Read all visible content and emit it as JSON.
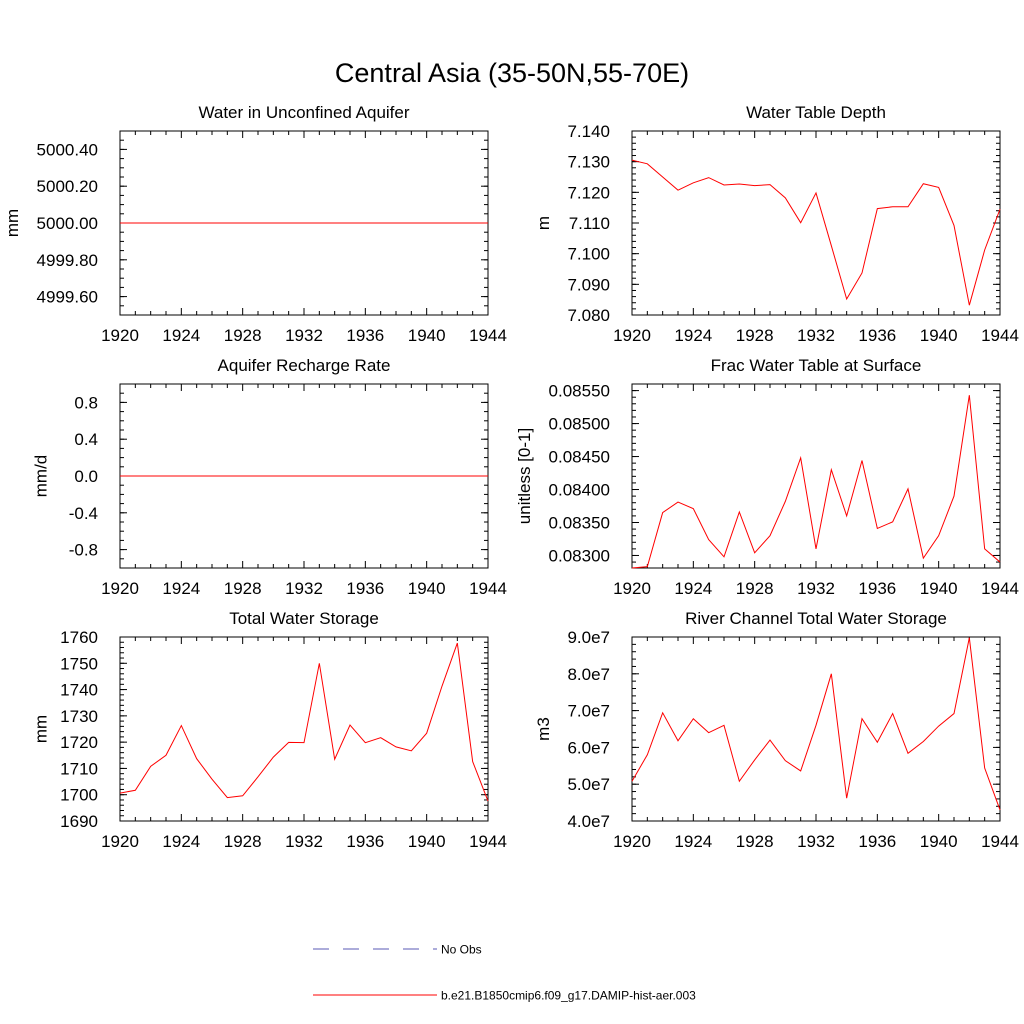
{
  "title": "Central Asia (35-50N,55-70E)",
  "colors": {
    "model": "#ff0000",
    "obs": "#5a5ab4",
    "axis": "#000000"
  },
  "legend": {
    "obs_label": "No Obs",
    "model_label": "b.e21.B1850cmip6.f09_g17.DAMIP-hist-aer.003"
  },
  "chart_data": [
    {
      "type": "line",
      "title": "Water in Unconfined Aquifer",
      "ylabel": "mm",
      "xlim": [
        1920,
        1944
      ],
      "ylim": [
        4999.5,
        5000.5
      ],
      "xticks": [
        1920,
        1924,
        1928,
        1932,
        1936,
        1940,
        1944
      ],
      "xtick_labels": [
        "1920",
        "1924",
        "1928",
        "1932",
        "1936",
        "1940",
        "1944"
      ],
      "yticks": [
        4999.6,
        4999.8,
        5000.0,
        5000.2,
        5000.4
      ],
      "ytick_labels": [
        "4999.60",
        "4999.80",
        "5000.00",
        "5000.20",
        "5000.40"
      ],
      "ymin_step": 0.05,
      "x": [
        1920,
        1921,
        1922,
        1923,
        1924,
        1925,
        1926,
        1927,
        1928,
        1929,
        1930,
        1931,
        1932,
        1933,
        1934,
        1935,
        1936,
        1937,
        1938,
        1939,
        1940,
        1941,
        1942,
        1943,
        1944
      ],
      "y": [
        5000,
        5000,
        5000,
        5000,
        5000,
        5000,
        5000,
        5000,
        5000,
        5000,
        5000,
        5000,
        5000,
        5000,
        5000,
        5000,
        5000,
        5000,
        5000,
        5000,
        5000,
        5000,
        5000,
        5000,
        5000
      ]
    },
    {
      "type": "line",
      "title": "Water Table Depth",
      "ylabel": "m",
      "xlim": [
        1920,
        1944
      ],
      "ylim": [
        7.08,
        7.14
      ],
      "xticks": [
        1920,
        1924,
        1928,
        1932,
        1936,
        1940,
        1944
      ],
      "xtick_labels": [
        "1920",
        "1924",
        "1928",
        "1932",
        "1936",
        "1940",
        "1944"
      ],
      "yticks": [
        7.08,
        7.09,
        7.1,
        7.11,
        7.12,
        7.13,
        7.14
      ],
      "ytick_labels": [
        "7.080",
        "7.090",
        "7.100",
        "7.110",
        "7.120",
        "7.130",
        "7.140"
      ],
      "ymin_step": 0.002,
      "x": [
        1920,
        1921,
        1922,
        1923,
        1924,
        1925,
        1926,
        1927,
        1928,
        1929,
        1930,
        1931,
        1932,
        1933,
        1934,
        1935,
        1936,
        1937,
        1938,
        1939,
        1940,
        1941,
        1942,
        1943,
        1944
      ],
      "y": [
        7.1305,
        7.1293,
        7.125,
        7.1207,
        7.1231,
        7.1248,
        7.1224,
        7.1227,
        7.1222,
        7.1225,
        7.1182,
        7.1101,
        7.1198,
        7.1026,
        7.0852,
        7.0937,
        7.1147,
        7.1153,
        7.1153,
        7.1228,
        7.1216,
        7.1092,
        7.0832,
        7.1012,
        7.1145
      ]
    },
    {
      "type": "line",
      "title": "Aquifer Recharge Rate",
      "ylabel": "mm/d",
      "xlim": [
        1920,
        1944
      ],
      "ylim": [
        -1.0,
        1.0
      ],
      "xticks": [
        1920,
        1924,
        1928,
        1932,
        1936,
        1940,
        1944
      ],
      "xtick_labels": [
        "1920",
        "1924",
        "1928",
        "1932",
        "1936",
        "1940",
        "1944"
      ],
      "yticks": [
        -0.8,
        -0.4,
        0.0,
        0.4,
        0.8
      ],
      "ytick_labels": [
        "-0.8",
        "-0.4",
        "0.0",
        "0.4",
        "0.8"
      ],
      "ymin_step": 0.1,
      "x": [
        1920,
        1921,
        1922,
        1923,
        1924,
        1925,
        1926,
        1927,
        1928,
        1929,
        1930,
        1931,
        1932,
        1933,
        1934,
        1935,
        1936,
        1937,
        1938,
        1939,
        1940,
        1941,
        1942,
        1943,
        1944
      ],
      "y": [
        0,
        0,
        0,
        0,
        0,
        0,
        0,
        0,
        0,
        0,
        0,
        0,
        0,
        0,
        0,
        0,
        0,
        0,
        0,
        0,
        0,
        0,
        0,
        0,
        0
      ]
    },
    {
      "type": "line",
      "title": "Frac Water Table at Surface",
      "ylabel": "unitless [0-1]",
      "xlim": [
        1920,
        1944
      ],
      "ylim": [
        0.08281,
        0.0856
      ],
      "xticks": [
        1920,
        1924,
        1928,
        1932,
        1936,
        1940,
        1944
      ],
      "xtick_labels": [
        "1920",
        "1924",
        "1928",
        "1932",
        "1936",
        "1940",
        "1944"
      ],
      "yticks": [
        0.083,
        0.0835,
        0.084,
        0.0845,
        0.085,
        0.0855
      ],
      "ytick_labels": [
        "0.08300",
        "0.08350",
        "0.08400",
        "0.08450",
        "0.08500",
        "0.08550"
      ],
      "ymin_step": 0.0001,
      "x": [
        1920,
        1921,
        1922,
        1923,
        1924,
        1925,
        1926,
        1927,
        1928,
        1929,
        1930,
        1931,
        1932,
        1933,
        1934,
        1935,
        1936,
        1937,
        1938,
        1939,
        1940,
        1941,
        1942,
        1943,
        1944
      ],
      "y": [
        0.08281,
        0.08283,
        0.08365,
        0.08381,
        0.08371,
        0.08324,
        0.08298,
        0.08366,
        0.08304,
        0.0833,
        0.08382,
        0.08448,
        0.0831,
        0.0843,
        0.0836,
        0.08444,
        0.08341,
        0.08351,
        0.08401,
        0.08296,
        0.0833,
        0.0839,
        0.08543,
        0.0831,
        0.0829
      ]
    },
    {
      "type": "line",
      "title": "Total Water Storage",
      "ylabel": "mm",
      "xlim": [
        1920,
        1944
      ],
      "ylim": [
        1690,
        1760
      ],
      "xticks": [
        1920,
        1924,
        1928,
        1932,
        1936,
        1940,
        1944
      ],
      "xtick_labels": [
        "1920",
        "1924",
        "1928",
        "1932",
        "1936",
        "1940",
        "1944"
      ],
      "yticks": [
        1690,
        1700,
        1710,
        1720,
        1730,
        1740,
        1750,
        1760
      ],
      "ytick_labels": [
        "1690",
        "1700",
        "1710",
        "1720",
        "1730",
        "1740",
        "1750",
        "1760"
      ],
      "ymin_step": 2,
      "x": [
        1920,
        1921,
        1922,
        1923,
        1924,
        1925,
        1926,
        1927,
        1928,
        1929,
        1930,
        1931,
        1932,
        1933,
        1934,
        1935,
        1936,
        1937,
        1938,
        1939,
        1940,
        1941,
        1942,
        1943,
        1944
      ],
      "y": [
        1700.6,
        1701.7,
        1710.8,
        1715,
        1726.3,
        1713.7,
        1705.9,
        1698.9,
        1699.6,
        1706.8,
        1714.3,
        1719.9,
        1719.8,
        1750,
        1713.5,
        1726.5,
        1719.8,
        1721.7,
        1718.2,
        1716.7,
        1723.4,
        1741.3,
        1757.7,
        1712.6,
        1697.6
      ]
    },
    {
      "type": "line",
      "title": "River Channel Total Water Storage",
      "ylabel": "m3",
      "xlim": [
        1920,
        1944
      ],
      "ylim": [
        40000000,
        90000000
      ],
      "xticks": [
        1920,
        1924,
        1928,
        1932,
        1936,
        1940,
        1944
      ],
      "xtick_labels": [
        "1920",
        "1924",
        "1928",
        "1932",
        "1936",
        "1940",
        "1944"
      ],
      "yticks": [
        40000000,
        50000000,
        60000000,
        70000000,
        80000000,
        90000000
      ],
      "ytick_labels": [
        "4.0e7",
        "5.0e7",
        "6.0e7",
        "7.0e7",
        "8.0e7",
        "9.0e7"
      ],
      "ymin_step": 2000000,
      "x": [
        1920,
        1921,
        1922,
        1923,
        1924,
        1925,
        1926,
        1927,
        1928,
        1929,
        1930,
        1931,
        1932,
        1933,
        1934,
        1935,
        1936,
        1937,
        1938,
        1939,
        1940,
        1941,
        1942,
        1943,
        1944
      ],
      "y": [
        50800000,
        58000000,
        69400000,
        61800000,
        67800000,
        64000000,
        66000000,
        50800000,
        56600000,
        62000000,
        56400000,
        53600000,
        66000000,
        80000000,
        46200000,
        67800000,
        61400000,
        69200000,
        58400000,
        61600000,
        65800000,
        69200000,
        89800000,
        54400000,
        43000000
      ]
    }
  ]
}
